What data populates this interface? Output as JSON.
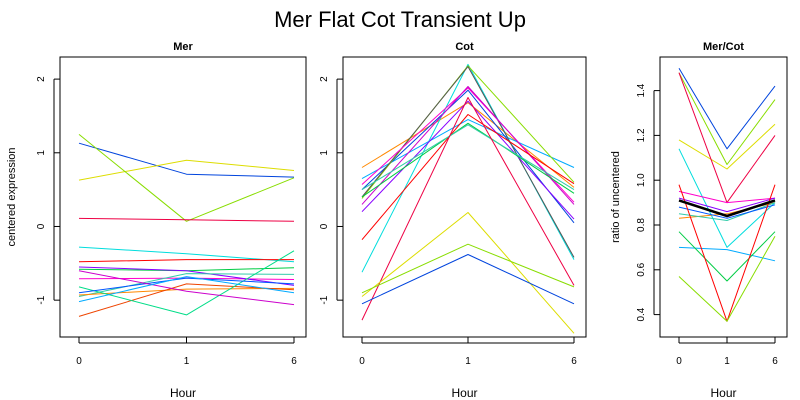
{
  "figure": {
    "title": "Mer Flat Cot Transient Up"
  },
  "chart_data": [
    {
      "type": "line",
      "title": "Mer",
      "xlabel": "Hour",
      "ylabel": "centered expression",
      "categories": [
        "0",
        "1",
        "6"
      ],
      "ylim": [
        -1.5,
        2.3
      ],
      "yticks": [
        -1,
        0,
        1,
        2
      ],
      "series": [
        {
          "color": "#0044dd",
          "values": [
            1.13,
            0.71,
            0.67
          ]
        },
        {
          "color": "#dddd00",
          "values": [
            0.63,
            0.9,
            0.76
          ]
        },
        {
          "color": "#88dd00",
          "values": [
            1.25,
            0.07,
            0.66
          ]
        },
        {
          "color": "#ee0044",
          "values": [
            0.11,
            0.09,
            0.07
          ]
        },
        {
          "color": "#00dddd",
          "values": [
            -0.28,
            -0.37,
            -0.48
          ]
        },
        {
          "color": "#ff0000",
          "values": [
            -0.48,
            -0.45,
            -0.45
          ]
        },
        {
          "color": "#00cc44",
          "values": [
            -0.58,
            -0.6,
            -0.56
          ]
        },
        {
          "color": "#ff00cc",
          "values": [
            -0.71,
            -0.7,
            -0.72
          ]
        },
        {
          "color": "#8800ff",
          "values": [
            -0.55,
            -0.6,
            -0.8
          ]
        },
        {
          "color": "#33ccaa",
          "values": [
            -0.95,
            -0.64,
            -0.65
          ]
        },
        {
          "color": "#ff8800",
          "values": [
            -0.93,
            -0.85,
            -0.84
          ]
        },
        {
          "color": "#ee4400",
          "values": [
            -1.22,
            -0.78,
            -0.86
          ]
        },
        {
          "color": "#00dd88",
          "values": [
            -0.82,
            -1.2,
            -0.33
          ]
        },
        {
          "color": "#0055ff",
          "values": [
            -0.9,
            -0.7,
            -0.78
          ]
        },
        {
          "color": "#cc00cc",
          "values": [
            -0.6,
            -0.88,
            -1.06
          ]
        },
        {
          "color": "#00aaff",
          "values": [
            -1.02,
            -0.68,
            -0.9
          ]
        }
      ]
    },
    {
      "type": "line",
      "title": "Cot",
      "xlabel": "Hour",
      "ylabel": "",
      "categories": [
        "0",
        "1",
        "6"
      ],
      "ylim": [
        -1.5,
        2.3
      ],
      "yticks": [
        -1,
        0,
        1,
        2
      ],
      "series": [
        {
          "color": "#ff8800",
          "values": [
            0.8,
            1.68,
            0.53
          ]
        },
        {
          "color": "#00aaff",
          "values": [
            0.65,
            1.45,
            0.8
          ]
        },
        {
          "color": "#0044dd",
          "values": [
            0.5,
            1.85,
            0.05
          ]
        },
        {
          "color": "#00dddd",
          "values": [
            -0.62,
            2.2,
            -0.45
          ]
        },
        {
          "color": "#88dd00",
          "values": [
            0.38,
            2.18,
            0.6
          ]
        },
        {
          "color": "#555555",
          "values": [
            0.4,
            2.17,
            -0.42
          ]
        },
        {
          "color": "#ff00cc",
          "values": [
            0.57,
            1.88,
            0.33
          ]
        },
        {
          "color": "#8800ff",
          "values": [
            0.2,
            1.7,
            0.1
          ]
        },
        {
          "color": "#cc00cc",
          "values": [
            0.3,
            1.9,
            0.3
          ]
        },
        {
          "color": "#ff0000",
          "values": [
            -0.18,
            1.52,
            0.58
          ]
        },
        {
          "color": "#00cc44",
          "values": [
            0.4,
            1.4,
            0.45
          ]
        },
        {
          "color": "#33ccaa",
          "values": [
            0.5,
            1.38,
            0.5
          ]
        },
        {
          "color": "#ee0044",
          "values": [
            -1.27,
            1.75,
            -0.8
          ]
        },
        {
          "color": "#dddd00",
          "values": [
            -0.95,
            0.19,
            -1.45
          ]
        },
        {
          "color": "#88dd00",
          "values": [
            -0.9,
            -0.24,
            -0.82
          ]
        },
        {
          "color": "#0044dd",
          "values": [
            -1.05,
            -0.38,
            -1.05
          ]
        }
      ]
    },
    {
      "type": "line",
      "title": "Mer/Cot",
      "xlabel": "Hour",
      "ylabel": "ratio of uncentered",
      "categories": [
        "0",
        "1",
        "6"
      ],
      "ylim": [
        0.3,
        1.55
      ],
      "yticks": [
        0.4,
        0.6,
        0.8,
        1.0,
        1.2,
        1.4
      ],
      "ytick_labels": [
        "0.4",
        "0.6",
        "0.8",
        "1.0",
        "1.2",
        "1.4"
      ],
      "series": [
        {
          "color": "#0044dd",
          "values": [
            1.5,
            1.14,
            1.42
          ]
        },
        {
          "color": "#88dd00",
          "values": [
            1.48,
            1.07,
            1.36
          ]
        },
        {
          "color": "#dddd00",
          "values": [
            1.18,
            1.05,
            1.25
          ]
        },
        {
          "color": "#ee0044",
          "values": [
            1.48,
            0.9,
            1.2
          ]
        },
        {
          "color": "#00dddd",
          "values": [
            1.14,
            0.7,
            0.9
          ]
        },
        {
          "color": "#ff00cc",
          "values": [
            0.95,
            0.9,
            0.92
          ]
        },
        {
          "color": "#ff8800",
          "values": [
            0.83,
            0.85,
            0.9
          ]
        },
        {
          "color": "#8800ff",
          "values": [
            0.92,
            0.86,
            0.92
          ]
        },
        {
          "color": "#33ccaa",
          "values": [
            0.85,
            0.82,
            0.9
          ]
        },
        {
          "color": "#0055ff",
          "values": [
            0.88,
            0.83,
            0.89
          ]
        },
        {
          "color": "#00aaff",
          "values": [
            0.7,
            0.69,
            0.64
          ]
        },
        {
          "color": "#00cc44",
          "values": [
            0.77,
            0.55,
            0.77
          ]
        },
        {
          "color": "#ff0000",
          "values": [
            0.98,
            0.37,
            0.98
          ]
        },
        {
          "color": "#88dd00",
          "values": [
            0.57,
            0.37,
            0.75
          ]
        },
        {
          "color": "#000000",
          "width": 2.5,
          "values": [
            0.91,
            0.84,
            0.91
          ]
        }
      ]
    }
  ]
}
